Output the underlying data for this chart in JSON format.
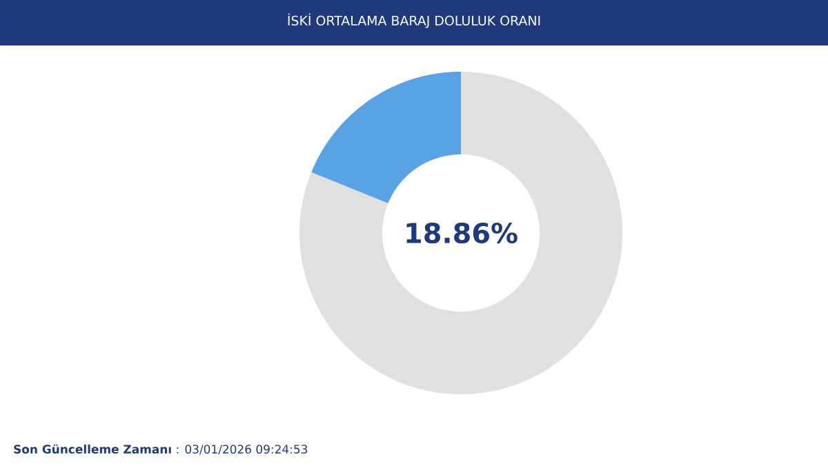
{
  "chart_data": {
    "type": "donut",
    "title": "İSKİ ORTALAMA BARAJ DOLULUK ORANI",
    "categories": [
      null,
      null
    ],
    "values": [
      18.86,
      81.14
    ],
    "colors": [
      "#5aa2e6",
      "#e0e0e0"
    ],
    "annotations": [
      "18.86%",
      "**Son Güncelleme Zamanı** : 03/01/2026 09:24:53"
    ]
  }
}
